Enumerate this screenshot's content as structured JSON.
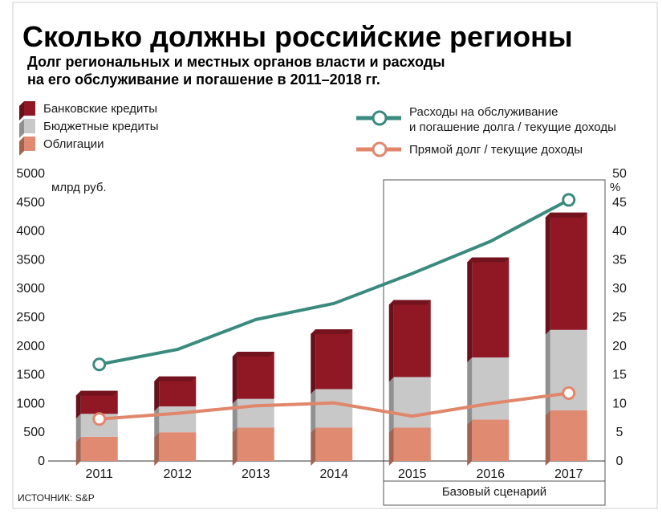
{
  "chart_data": {
    "type": "bar",
    "title": "Сколько должны российские регионы",
    "subtitle_line1": "Долг региональных и местных органов власти и расходы",
    "subtitle_line2": "на его обслуживание и погашение в 2011–2018 гг.",
    "categories": [
      "2011",
      "2012",
      "2013",
      "2014",
      "2015",
      "2016",
      "2017"
    ],
    "ylabel": "млрд руб.",
    "ylabel_right": "%",
    "ylim": [
      0,
      5000
    ],
    "ylim_right": [
      0,
      50
    ],
    "yticks": [
      "0",
      "500",
      "1000",
      "1500",
      "2000",
      "2500",
      "3000",
      "3500",
      "4000",
      "4500",
      "5000"
    ],
    "yticks_right": [
      "0",
      "5",
      "10",
      "15",
      "20",
      "25",
      "30",
      "35",
      "40",
      "45",
      "50"
    ],
    "series": [
      {
        "name": "Облигации",
        "values": [
          420,
          500,
          580,
          580,
          580,
          720,
          880
        ],
        "color": "#e08a72"
      },
      {
        "name": "Бюджетные кредиты",
        "values": [
          400,
          450,
          500,
          670,
          880,
          1080,
          1400
        ],
        "color": "#c8c8c8"
      },
      {
        "name": "Банковские кредиты",
        "values": [
          400,
          520,
          820,
          1040,
          1340,
          1740,
          2040
        ],
        "color": "#8f1824"
      }
    ],
    "line_series": [
      {
        "name": "Расходы на обслуживание и погашение долга / текущие доходы",
        "legend_line1": "Расходы на обслуживание",
        "legend_line2": "и погашение долга / текущие доходы",
        "values": [
          16.8,
          19.4,
          24.6,
          27.4,
          32.6,
          38.2,
          45.4
        ],
        "color": "#3a8a7e",
        "axis": "right"
      },
      {
        "name": "Прямой долг / текущие доходы",
        "values": [
          7.3,
          8.3,
          9.6,
          10.1,
          7.8,
          10.0,
          11.8
        ],
        "color": "#e0866b",
        "axis": "right"
      }
    ],
    "scenario_label": "Базовый сценарий",
    "source": "ИСТОЧНИК: S&P",
    "grid": false,
    "legend_position": "top-left"
  }
}
